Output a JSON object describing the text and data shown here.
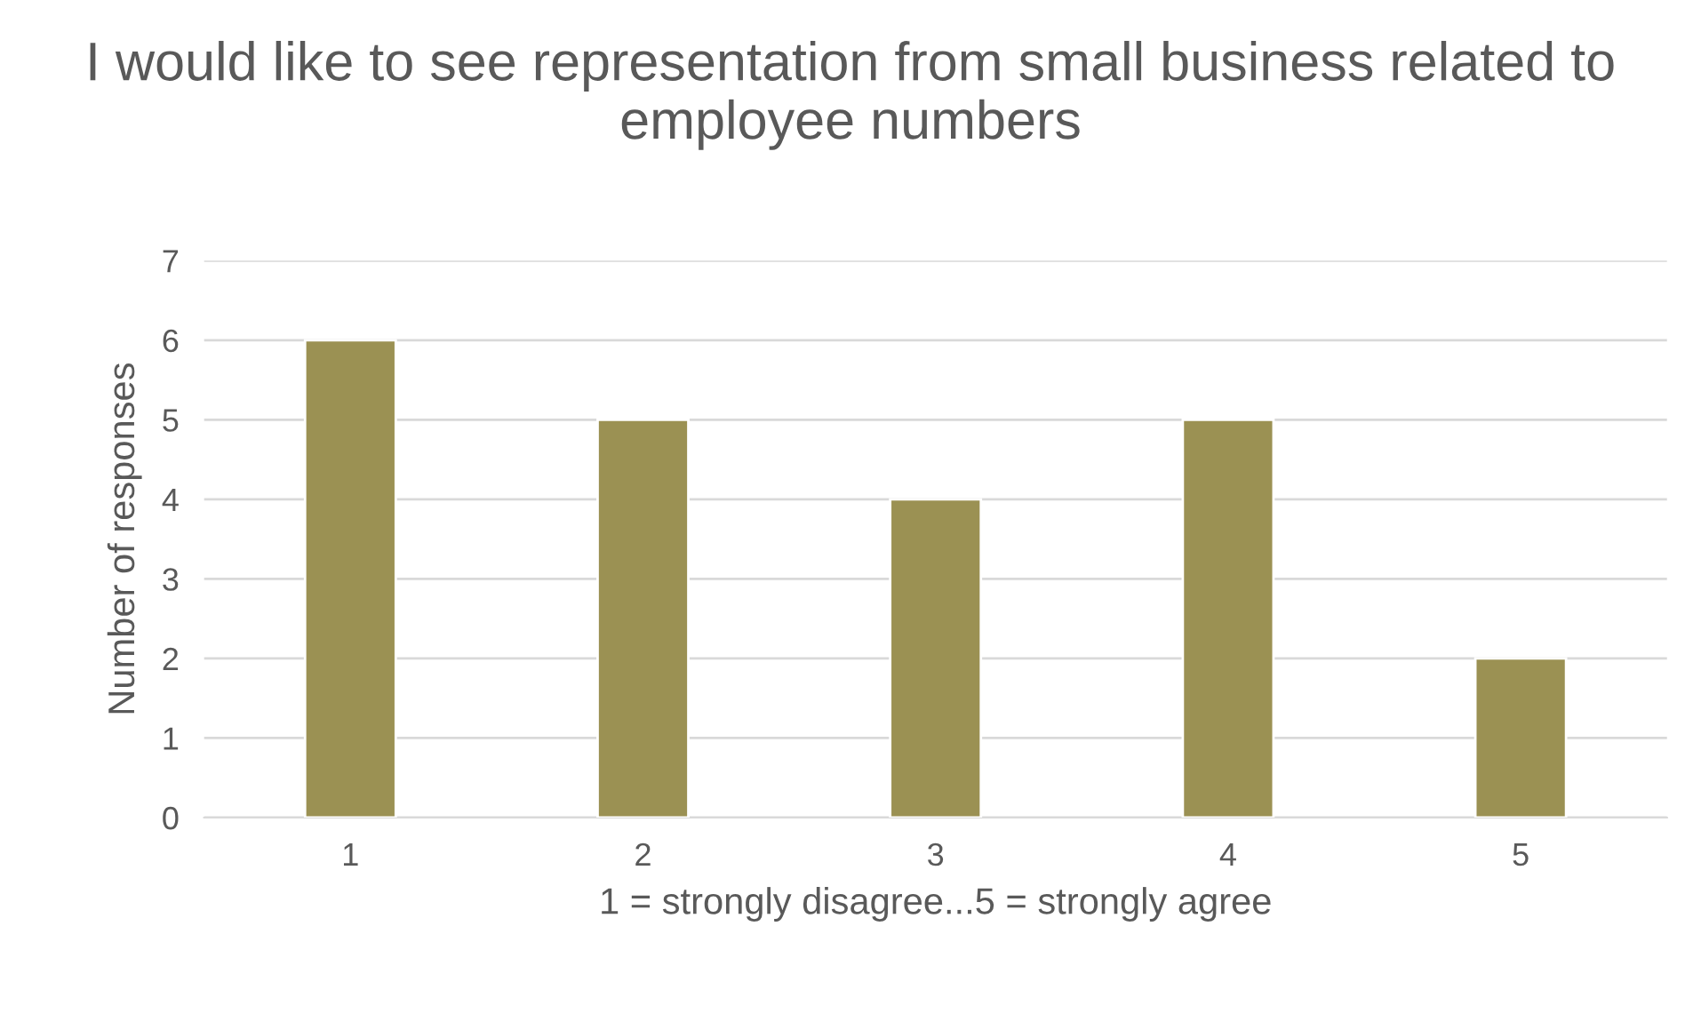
{
  "chart_data": {
    "type": "bar",
    "title": "I would like to see representation from small business related to employee numbers",
    "xlabel": "1 = strongly disagree...5 = strongly agree",
    "ylabel": "Number of responses",
    "categories": [
      "1",
      "2",
      "3",
      "4",
      "5"
    ],
    "values": [
      6,
      5,
      4,
      5,
      2
    ],
    "color": "#9b9153",
    "ylim": [
      0,
      7
    ],
    "yticks": [
      0,
      1,
      2,
      3,
      4,
      5,
      6,
      7
    ],
    "grid": "y",
    "legend": false
  }
}
